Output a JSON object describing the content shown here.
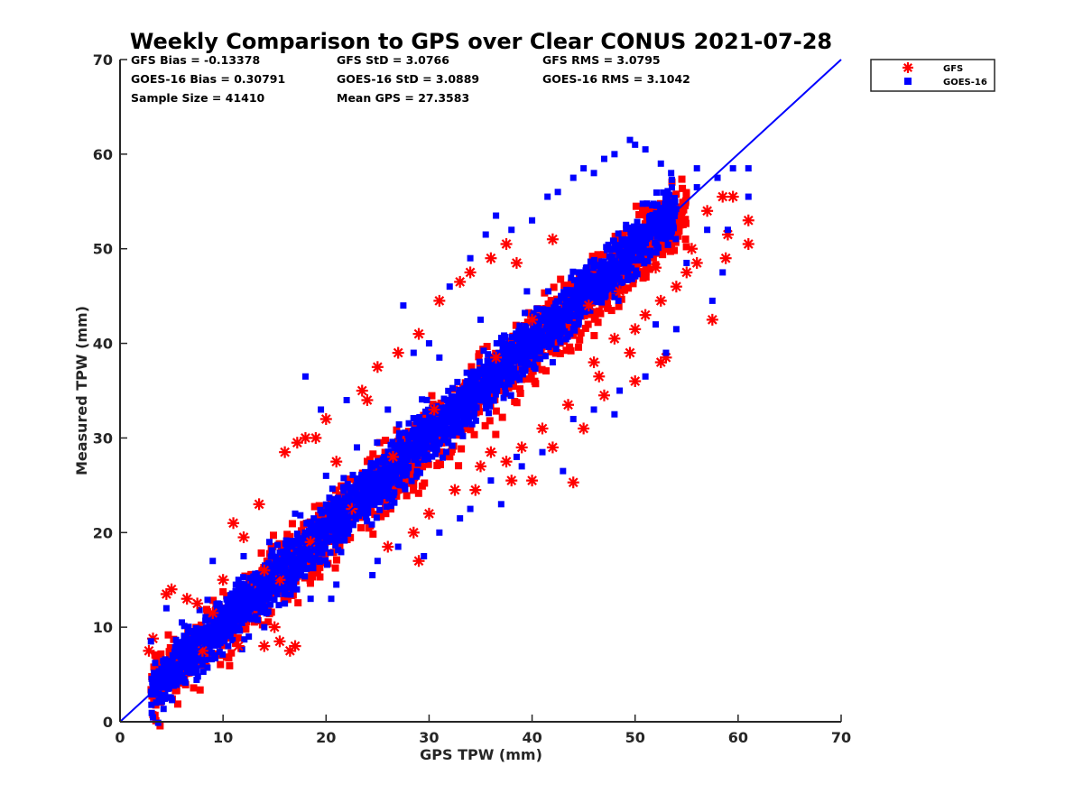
{
  "colors": {
    "gfs": "#ff0000",
    "goes": "#0000ff",
    "axis": "#262626",
    "reference_line": "#0000ff"
  },
  "chart_data": {
    "type": "scatter",
    "title": "Weekly Comparison to GPS over Clear CONUS 2021-07-28",
    "xlabel": "GPS TPW (mm)",
    "ylabel": "Measured TPW (mm)",
    "xlim": [
      0,
      70
    ],
    "ylim": [
      0,
      70
    ],
    "xticks": [
      0,
      10,
      20,
      30,
      40,
      50,
      60,
      70
    ],
    "yticks": [
      0,
      10,
      20,
      30,
      40,
      50,
      60,
      70
    ],
    "grid": false,
    "legend_position": "outside-top-right",
    "stats": {
      "gfs_bias": "GFS Bias = -0.13378",
      "goes_bias": "GOES-16 Bias = 0.30791",
      "sample_size": "Sample Size = 41410",
      "gfs_std": "GFS StD = 3.0766",
      "goes_std": "GOES-16 StD = 3.0889",
      "mean_gps": "Mean GPS = 27.3583",
      "gfs_rms": "GFS RMS = 3.0795",
      "goes_rms": "GOES-16 RMS = 3.1042"
    },
    "reference_line": {
      "x": [
        0,
        70
      ],
      "y": [
        0,
        70
      ]
    },
    "series": [
      {
        "name": "GFS",
        "marker": "asterisk",
        "color": "#ff0000",
        "points": [
          [
            2.8,
            7.5
          ],
          [
            3.2,
            8.8
          ],
          [
            4.5,
            13.5
          ],
          [
            5.0,
            14.0
          ],
          [
            6.5,
            13.0
          ],
          [
            7.5,
            12.5
          ],
          [
            11.0,
            21.0
          ],
          [
            16.5,
            7.5
          ],
          [
            15.5,
            8.5
          ],
          [
            14.0,
            8.0
          ],
          [
            17.0,
            8.0
          ],
          [
            15.0,
            10.0
          ],
          [
            13.5,
            23.0
          ],
          [
            16.0,
            28.5
          ],
          [
            18.0,
            30.0
          ],
          [
            17.2,
            29.5
          ],
          [
            20.0,
            32.0
          ],
          [
            23.5,
            35.0
          ],
          [
            24.0,
            34.0
          ],
          [
            29.0,
            17.0
          ],
          [
            26.0,
            18.5
          ],
          [
            28.5,
            20.0
          ],
          [
            37.5,
            27.5
          ],
          [
            38.0,
            25.5
          ],
          [
            40.0,
            25.5
          ],
          [
            44.0,
            25.3
          ],
          [
            42.0,
            29.0
          ],
          [
            34.5,
            24.5
          ],
          [
            36.0,
            28.5
          ],
          [
            39.0,
            29.0
          ],
          [
            45.0,
            31.0
          ],
          [
            47.0,
            34.5
          ],
          [
            50.0,
            36.0
          ],
          [
            52.5,
            38.0
          ],
          [
            53.0,
            38.5
          ],
          [
            57.5,
            42.5
          ],
          [
            58.8,
            49.0
          ],
          [
            61.0,
            50.5
          ],
          [
            61.0,
            53.0
          ],
          [
            59.0,
            51.5
          ],
          [
            59.5,
            55.5
          ],
          [
            58.5,
            55.5
          ],
          [
            57.0,
            54.0
          ],
          [
            55.5,
            50.0
          ],
          [
            56.0,
            48.5
          ],
          [
            55.0,
            47.5
          ],
          [
            52.0,
            48.0
          ],
          [
            54.0,
            46.0
          ],
          [
            52.5,
            44.5
          ],
          [
            51.0,
            43.0
          ],
          [
            50.0,
            41.5
          ],
          [
            49.5,
            39.0
          ],
          [
            48.0,
            40.5
          ],
          [
            46.0,
            38.0
          ],
          [
            33.0,
            46.5
          ],
          [
            34.0,
            47.5
          ],
          [
            36.0,
            49.0
          ],
          [
            37.5,
            50.5
          ],
          [
            38.5,
            48.5
          ],
          [
            42.0,
            51.0
          ],
          [
            29.0,
            41.0
          ],
          [
            31.0,
            44.5
          ],
          [
            25.0,
            37.5
          ],
          [
            27.0,
            39.0
          ],
          [
            19.0,
            30.0
          ],
          [
            21.0,
            27.5
          ],
          [
            12.0,
            19.5
          ],
          [
            14.0,
            16.0
          ],
          [
            10.0,
            15.0
          ],
          [
            9.0,
            11.5
          ],
          [
            8.0,
            7.5
          ],
          [
            11.5,
            8.0
          ],
          [
            30.0,
            22.0
          ],
          [
            32.5,
            24.5
          ],
          [
            35.0,
            27.0
          ],
          [
            41.0,
            31.0
          ],
          [
            43.5,
            33.5
          ],
          [
            46.5,
            36.5
          ],
          [
            48.5,
            45.5
          ],
          [
            45.5,
            44.0
          ],
          [
            40.0,
            42.5
          ],
          [
            36.5,
            38.5
          ],
          [
            30.5,
            33.0
          ],
          [
            26.5,
            28.0
          ],
          [
            22.5,
            22.5
          ],
          [
            18.5,
            19.0
          ],
          [
            15.5,
            15.0
          ]
        ]
      },
      {
        "name": "GOES-16",
        "marker": "square",
        "color": "#0000ff",
        "points": [
          [
            3.0,
            8.5
          ],
          [
            4.5,
            12.0
          ],
          [
            6.5,
            5.5
          ],
          [
            7.0,
            5.2
          ],
          [
            9.0,
            17.0
          ],
          [
            12.0,
            17.5
          ],
          [
            18.0,
            36.5
          ],
          [
            19.5,
            33.0
          ],
          [
            22.0,
            34.0
          ],
          [
            27.5,
            44.0
          ],
          [
            28.5,
            39.0
          ],
          [
            30.0,
            40.0
          ],
          [
            32.0,
            46.0
          ],
          [
            34.0,
            49.0
          ],
          [
            35.5,
            51.5
          ],
          [
            36.5,
            53.5
          ],
          [
            38.0,
            52.0
          ],
          [
            40.0,
            53.0
          ],
          [
            41.5,
            55.5
          ],
          [
            42.5,
            56.0
          ],
          [
            44.0,
            57.5
          ],
          [
            45.0,
            58.5
          ],
          [
            46.0,
            58.0
          ],
          [
            47.0,
            59.5
          ],
          [
            48.0,
            60.0
          ],
          [
            49.5,
            61.5
          ],
          [
            50.0,
            61.0
          ],
          [
            51.0,
            60.5
          ],
          [
            52.5,
            59.0
          ],
          [
            53.5,
            58.0
          ],
          [
            56.0,
            58.5
          ],
          [
            58.0,
            57.5
          ],
          [
            59.5,
            58.5
          ],
          [
            61.0,
            58.5
          ],
          [
            61.0,
            55.5
          ],
          [
            59.0,
            52.0
          ],
          [
            58.5,
            47.5
          ],
          [
            57.5,
            44.5
          ],
          [
            54.0,
            41.5
          ],
          [
            53.0,
            39.0
          ],
          [
            51.0,
            36.5
          ],
          [
            48.5,
            35.0
          ],
          [
            46.0,
            33.0
          ],
          [
            44.0,
            32.0
          ],
          [
            41.0,
            28.5
          ],
          [
            39.0,
            27.0
          ],
          [
            38.5,
            28.0
          ],
          [
            36.0,
            25.5
          ],
          [
            34.0,
            22.5
          ],
          [
            31.0,
            20.0
          ],
          [
            29.5,
            17.5
          ],
          [
            27.0,
            18.5
          ],
          [
            24.5,
            15.5
          ],
          [
            21.0,
            14.5
          ],
          [
            18.5,
            13.0
          ],
          [
            16.0,
            12.5
          ],
          [
            14.0,
            10.0
          ],
          [
            12.5,
            9.0
          ],
          [
            10.5,
            8.0
          ],
          [
            8.0,
            6.0
          ],
          [
            20.5,
            13.0
          ],
          [
            25.0,
            17.0
          ],
          [
            33.0,
            21.5
          ],
          [
            43.0,
            26.5
          ],
          [
            37.0,
            23.0
          ],
          [
            48.0,
            32.5
          ],
          [
            52.0,
            42.0
          ],
          [
            55.0,
            48.5
          ],
          [
            57.0,
            52.0
          ],
          [
            56.0,
            56.5
          ],
          [
            53.0,
            55.0
          ],
          [
            39.5,
            45.5
          ],
          [
            35.0,
            42.5
          ],
          [
            31.0,
            38.5
          ],
          [
            26.0,
            33.0
          ],
          [
            23.0,
            29.0
          ],
          [
            20.0,
            26.0
          ],
          [
            17.0,
            22.0
          ],
          [
            14.5,
            19.0
          ],
          [
            11.5,
            15.0
          ],
          [
            9.5,
            12.5
          ],
          [
            6.0,
            10.5
          ],
          [
            44.5,
            42.0
          ],
          [
            47.5,
            47.0
          ],
          [
            42.0,
            38.0
          ],
          [
            38.0,
            36.0
          ]
        ]
      }
    ]
  }
}
